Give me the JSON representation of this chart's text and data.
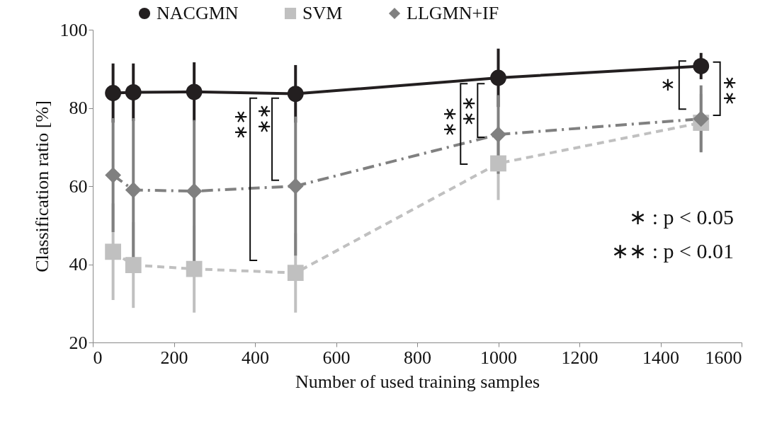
{
  "chart_data": {
    "type": "line",
    "xlabel": "Number of used training samples",
    "ylabel": "Classification ratio [%]",
    "x": [
      50,
      100,
      250,
      500,
      1000,
      1500
    ],
    "series": [
      {
        "name": "NACGMN",
        "color": "#231f20",
        "marker": "circle",
        "line_style": "solid",
        "values": [
          83.8,
          84,
          84.1,
          83.6,
          87.7,
          90.7
        ],
        "errors": [
          7.2,
          7,
          7.2,
          7,
          7.1,
          3
        ]
      },
      {
        "name": "SVM",
        "color": "#c0c0c0",
        "marker": "square",
        "line_style": "dashed",
        "values": [
          43.2,
          39.8,
          38.8,
          37.8,
          65.8,
          76.2
        ],
        "errors": [
          12,
          10.6,
          10.8,
          9.8,
          9,
          7
        ]
      },
      {
        "name": "LLGMN+IF",
        "color": "#808080",
        "marker": "diamond",
        "line_style": "dotted",
        "values": [
          62.8,
          59,
          58.7,
          60,
          73.2,
          77.2
        ],
        "errors": [
          14.2,
          18,
          17.8,
          17.4,
          9.7,
          8.2
        ]
      }
    ],
    "xlim": [
      0,
      1600
    ],
    "xticks": [
      0,
      200,
      400,
      600,
      800,
      {
        "value": 1000,
        "label": "1000"
      },
      {
        "value": 1200,
        "label": "1200"
      },
      {
        "value": 1400,
        "label": "1400"
      },
      {
        "value": 1600,
        "label": "1600"
      }
    ],
    "ylim": [
      20,
      100
    ],
    "yticks": [
      20,
      40,
      60,
      80,
      100
    ],
    "grid": false,
    "legend": "top",
    "annotations": [
      "∗∗",
      "∗∗",
      "∗∗",
      "∗∗",
      "∗",
      "∗∗",
      "∗ : p < 0.05",
      "∗∗ : p < 0.01"
    ]
  }
}
